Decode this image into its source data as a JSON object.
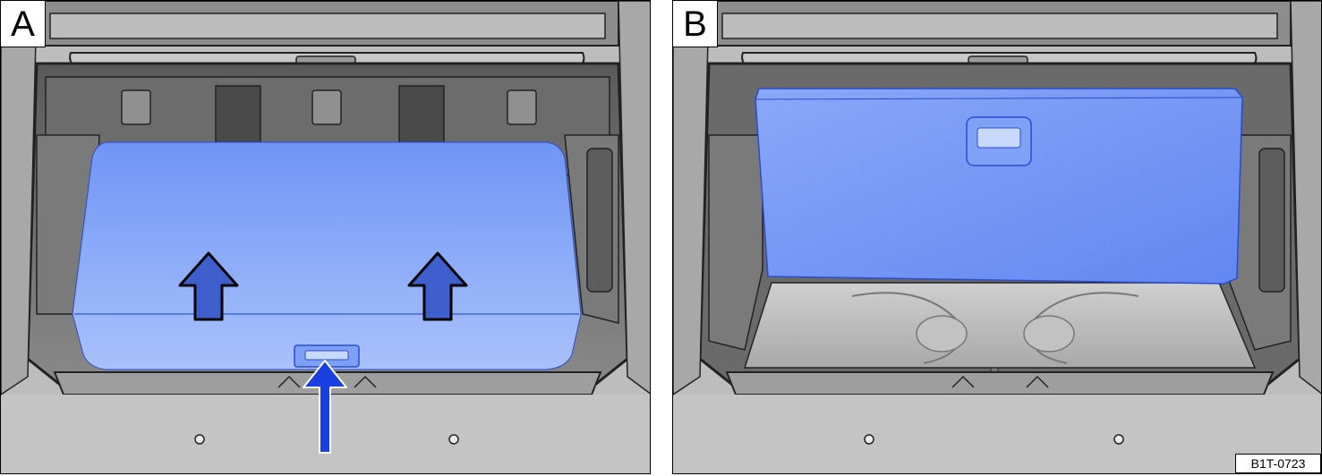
{
  "panels": [
    {
      "id": "A",
      "label": "A"
    },
    {
      "id": "B",
      "label": "B"
    }
  ],
  "figure_code": "B1T-0723",
  "colors": {
    "floor_panel": "#6f95f5",
    "floor_panel_light": "#a7c0fb",
    "arrow_fill": "#3f5fcf",
    "arrow_blue": "#1a3fe0",
    "trim_dark": "#3a3a3a",
    "trim_mid": "#8c8c8c",
    "body_grey": "#bdbdbd"
  }
}
